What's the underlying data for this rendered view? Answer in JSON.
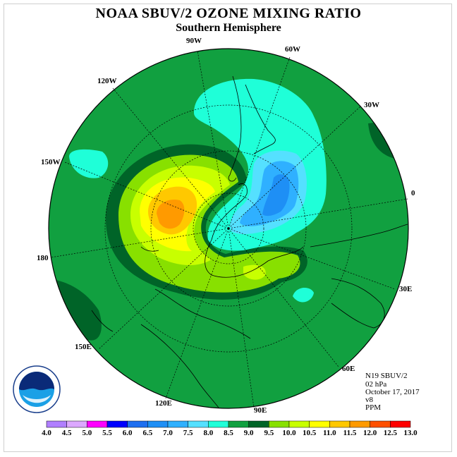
{
  "title": "NOAA SBUV/2 OZONE MIXING RATIO",
  "subtitle": "Southern Hemisphere",
  "longitude_labels": {
    "w90": "90W",
    "w60": "60W",
    "w30": "30W",
    "w120": "120W",
    "w150": "150W",
    "zero": "0",
    "d180": "180",
    "e30": "30E",
    "e60": "60E",
    "e90": "90E",
    "e120": "120E",
    "e150": "150E"
  },
  "info": {
    "satellite": "N19 SBUV/2",
    "pressure": "02 hPa",
    "date": "October 17, 2017",
    "version": "v8",
    "units": "PPM"
  },
  "logo": {
    "text": "NOAA",
    "ring_text": "NATIONAL OCEANIC AND ATMOSPHERIC ADMINISTRATION · U.S. DEPARTMENT OF COMMERCE"
  },
  "colorbar": {
    "ticks": [
      "4.0",
      "4.5",
      "5.0",
      "5.5",
      "6.0",
      "6.5",
      "7.0",
      "7.5",
      "8.0",
      "8.5",
      "9.0",
      "9.5",
      "10.0",
      "10.5",
      "11.0",
      "11.5",
      "12.0",
      "12.5",
      "13.0"
    ],
    "colors": [
      "#b07fff",
      "#dca8ff",
      "#ff00ff",
      "#0000ff",
      "#1e6ff0",
      "#1e8ff5",
      "#2fb0ff",
      "#55e0ff",
      "#1fffd8",
      "#11a040",
      "#006428",
      "#88e000",
      "#c8ff00",
      "#ffff00",
      "#ffc800",
      "#ff9a00",
      "#ff5000",
      "#ff0000",
      "#8b5a2b"
    ]
  }
}
